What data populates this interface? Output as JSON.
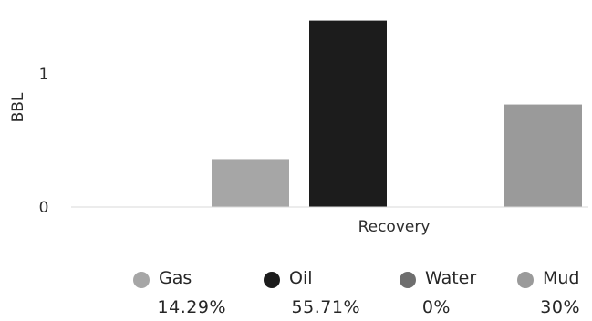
{
  "chart_data": {
    "type": "bar",
    "title": "",
    "xlabel": "Recovery",
    "ylabel": "BBL",
    "categories": [
      "Recovery"
    ],
    "ylim": [
      0,
      1.4
    ],
    "yticks": [
      0,
      1
    ],
    "yticklabels": [
      "0",
      "1"
    ],
    "grid": false,
    "legend_position": "bottom",
    "series": [
      {
        "name": "Gas",
        "values": [
          0.36
        ],
        "percent_label": "14.29%",
        "color": "#a6a6a6"
      },
      {
        "name": "Oil",
        "values": [
          1.4
        ],
        "percent_label": "55.71%",
        "color": "#1c1c1c"
      },
      {
        "name": "Water",
        "values": [
          0
        ],
        "percent_label": "0%",
        "color": "#6e6e6e"
      },
      {
        "name": "Mud",
        "values": [
          0.77
        ],
        "percent_label": "30%",
        "color": "#9a9a9a"
      }
    ]
  }
}
